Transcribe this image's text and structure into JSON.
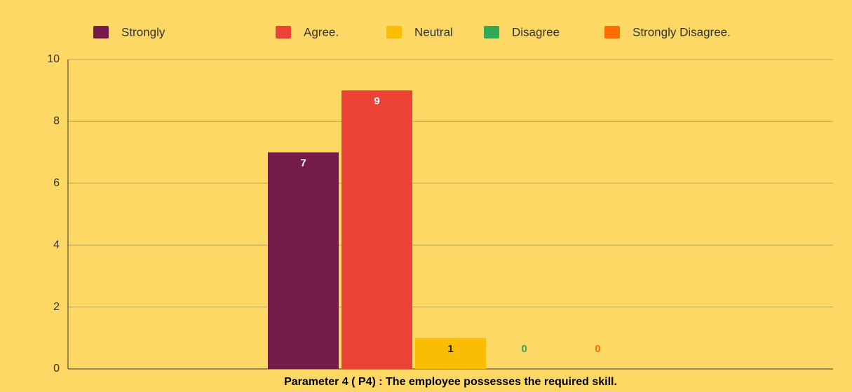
{
  "chart_data": {
    "type": "bar",
    "categories": [
      "Parameter 4 ( P4) : The employee possesses the required skill."
    ],
    "series": [
      {
        "name": "Strongly",
        "color": "#741b47",
        "values": [
          7
        ]
      },
      {
        "name": "Agree.",
        "color": "#ea4335",
        "values": [
          9
        ]
      },
      {
        "name": "Neutral",
        "color": "#fbbc04",
        "values": [
          1
        ]
      },
      {
        "name": "Disagree",
        "color": "#34a853",
        "values": [
          0
        ]
      },
      {
        "name": "Strongly Disagree.",
        "color": "#ff6d01",
        "values": [
          0
        ]
      }
    ],
    "ylim": [
      0,
      10
    ],
    "yticks": [
      0,
      2,
      4,
      6,
      8,
      10
    ],
    "grid": true,
    "legend": "top"
  }
}
